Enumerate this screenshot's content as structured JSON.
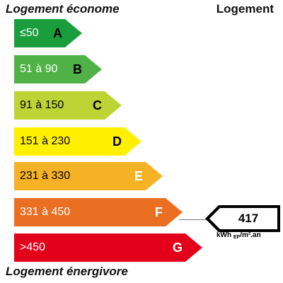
{
  "header": {
    "left_label": "Logement économe",
    "right_label": "Logement"
  },
  "footer": {
    "left_label": "Logement énergivore"
  },
  "bands": [
    {
      "letter": "A",
      "range": "≤50",
      "color": "#1a9d3c"
    },
    {
      "letter": "B",
      "range": "51 à 90",
      "color": "#4fb146"
    },
    {
      "letter": "C",
      "range": "91 à 150",
      "color": "#bcd434"
    },
    {
      "letter": "D",
      "range": "151 à 230",
      "color": "#fff000"
    },
    {
      "letter": "E",
      "range": "231 à 330",
      "color": "#f5b224"
    },
    {
      "letter": "F",
      "range": "331 à 450",
      "color": "#ea6f23"
    },
    {
      "letter": "G",
      "range": ">450",
      "color": "#e2001a"
    }
  ],
  "indicator": {
    "value": "417",
    "rating": "F",
    "unit_main": "kWh",
    "unit_sub": "EP",
    "unit_tail": "/m².an"
  }
}
